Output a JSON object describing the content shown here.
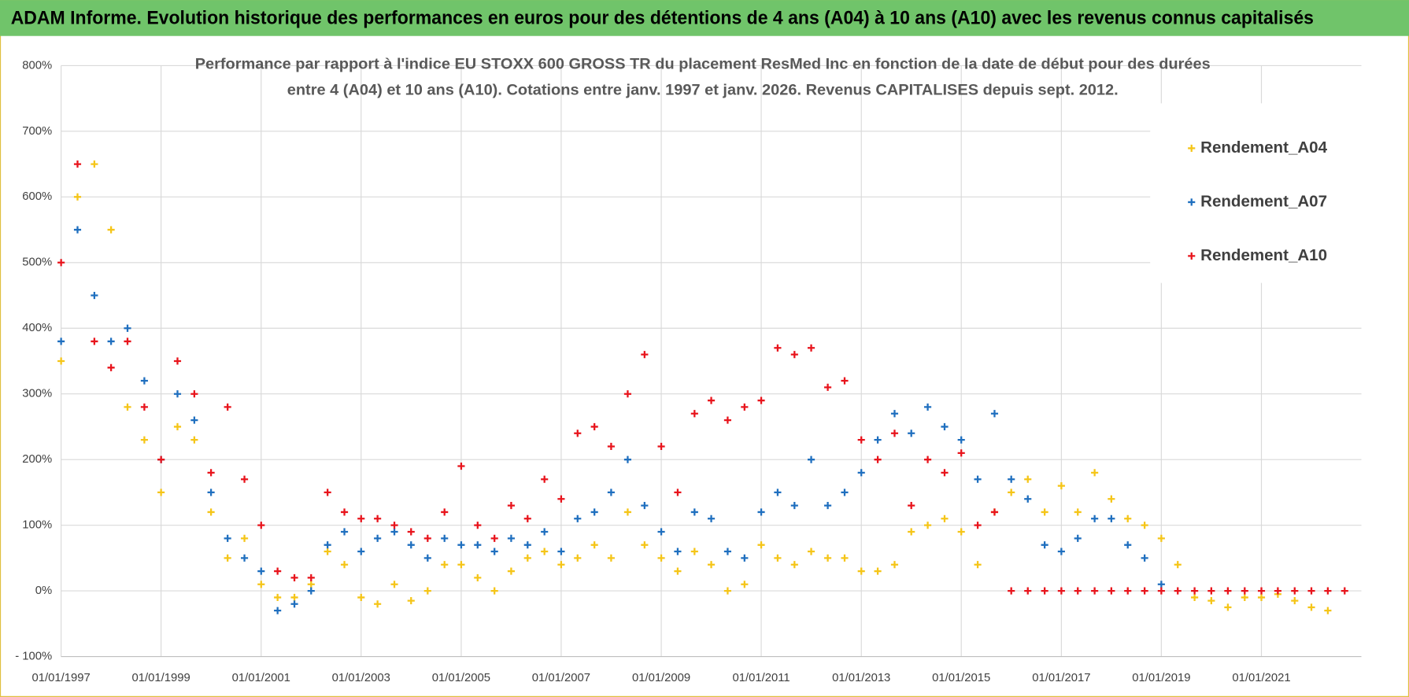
{
  "header": {
    "title": "ADAM Informe. Evolution historique des performances en euros pour des détentions de 4 ans (A04) à 10 ans (A10) avec les revenus connus capitalisés"
  },
  "chart_data": {
    "type": "scatter",
    "title": [
      "Performance par rapport à l'indice EU STOXX 600 GROSS TR  du placement ResMed Inc en fonction de la date de début pour des durées",
      "entre 4 (A04) et 10 ans (A10).  Cotations entre janv. 1997 et janv. 2026.  Revenus CAPITALISES  depuis sept. 2012."
    ],
    "x": [
      "1997-01-01",
      "1997-05-01",
      "1997-09-01",
      "1998-01-01",
      "1998-05-01",
      "1998-09-01",
      "1999-01-01",
      "1999-05-01",
      "1999-09-01",
      "2000-01-01",
      "2000-05-01",
      "2000-09-01",
      "2001-01-01",
      "2001-05-01",
      "2001-09-01",
      "2002-01-01",
      "2002-05-01",
      "2002-09-01",
      "2003-01-01",
      "2003-05-01",
      "2003-09-01",
      "2004-01-01",
      "2004-05-01",
      "2004-09-01",
      "2005-01-01",
      "2005-05-01",
      "2005-09-01",
      "2006-01-01",
      "2006-05-01",
      "2006-09-01",
      "2007-01-01",
      "2007-05-01",
      "2007-09-01",
      "2008-01-01",
      "2008-05-01",
      "2008-09-01",
      "2009-01-01",
      "2009-05-01",
      "2009-09-01",
      "2010-01-01",
      "2010-05-01",
      "2010-09-01",
      "2011-01-01",
      "2011-05-01",
      "2011-09-01",
      "2012-01-01",
      "2012-05-01",
      "2012-09-01",
      "2013-01-01",
      "2013-05-01",
      "2013-09-01",
      "2014-01-01",
      "2014-05-01",
      "2014-09-01",
      "2015-01-01",
      "2015-05-01",
      "2015-09-01",
      "2016-01-01",
      "2016-05-01",
      "2016-09-01",
      "2017-01-01",
      "2017-05-01",
      "2017-09-01",
      "2018-01-01",
      "2018-05-01",
      "2018-09-01",
      "2019-01-01",
      "2019-05-01",
      "2019-09-01",
      "2020-01-01",
      "2020-05-01",
      "2020-09-01",
      "2021-01-01",
      "2021-05-01",
      "2021-09-01",
      "2022-01-01",
      "2022-05-01",
      "2022-09-01"
    ],
    "series": [
      {
        "name": "Rendement_A04",
        "color": "#f5c518",
        "values": [
          350,
          600,
          650,
          550,
          280,
          230,
          150,
          250,
          230,
          120,
          50,
          80,
          10,
          -10,
          -10,
          10,
          60,
          40,
          -10,
          -20,
          10,
          -15,
          0,
          40,
          40,
          20,
          0,
          30,
          50,
          60,
          40,
          50,
          70,
          50,
          120,
          70,
          50,
          30,
          60,
          40,
          0,
          10,
          70,
          50,
          40,
          60,
          50,
          50,
          30,
          30,
          40,
          90,
          100,
          110,
          90,
          40,
          120,
          150,
          170,
          120,
          160,
          120,
          180,
          140,
          110,
          100,
          80,
          40,
          -10,
          -15,
          -25,
          -10,
          -10,
          -5,
          -15,
          -25,
          -30,
          null
        ]
      },
      {
        "name": "Rendement_A07",
        "color": "#1f6fbf",
        "values": [
          380,
          550,
          450,
          380,
          400,
          320,
          200,
          300,
          260,
          150,
          80,
          50,
          30,
          -30,
          -20,
          0,
          70,
          90,
          60,
          80,
          90,
          70,
          50,
          80,
          70,
          70,
          60,
          80,
          70,
          90,
          60,
          110,
          120,
          150,
          200,
          130,
          90,
          60,
          120,
          110,
          60,
          50,
          120,
          150,
          130,
          200,
          130,
          150,
          180,
          230,
          270,
          240,
          280,
          250,
          230,
          170,
          270,
          170,
          140,
          70,
          60,
          80,
          110,
          110,
          70,
          50,
          10,
          null,
          null,
          null,
          null,
          null,
          null,
          null,
          null,
          null,
          null,
          null
        ]
      },
      {
        "name": "Rendement_A10",
        "color": "#e8141c",
        "values": [
          500,
          650,
          380,
          340,
          380,
          280,
          200,
          350,
          300,
          180,
          280,
          170,
          100,
          30,
          20,
          20,
          150,
          120,
          110,
          110,
          100,
          90,
          80,
          120,
          190,
          100,
          80,
          130,
          110,
          170,
          140,
          240,
          250,
          220,
          300,
          360,
          220,
          150,
          270,
          290,
          260,
          280,
          290,
          370,
          360,
          370,
          310,
          320,
          230,
          200,
          240,
          130,
          200,
          180,
          210,
          100,
          120,
          0,
          0,
          0,
          0,
          0,
          0,
          0,
          0,
          0,
          0,
          0,
          0,
          0,
          0,
          0,
          0,
          0,
          0,
          0,
          0,
          0
        ]
      }
    ],
    "xlim": [
      "1997-01-01",
      "2023-01-01"
    ],
    "xticks": [
      {
        "value": "1997-01-01",
        "label": "01/01/1997"
      },
      {
        "value": "1999-01-01",
        "label": "01/01/1999"
      },
      {
        "value": "2001-01-01",
        "label": "01/01/2001"
      },
      {
        "value": "2003-01-01",
        "label": "01/01/2003"
      },
      {
        "value": "2005-01-01",
        "label": "01/01/2005"
      },
      {
        "value": "2007-01-01",
        "label": "01/01/2007"
      },
      {
        "value": "2009-01-01",
        "label": "01/01/2009"
      },
      {
        "value": "2011-01-01",
        "label": "01/01/2011"
      },
      {
        "value": "2013-01-01",
        "label": "01/01/2013"
      },
      {
        "value": "2015-01-01",
        "label": "01/01/2015"
      },
      {
        "value": "2017-01-01",
        "label": "01/01/2017"
      },
      {
        "value": "2019-01-01",
        "label": "01/01/2019"
      },
      {
        "value": "2021-01-01",
        "label": "01/01/2021"
      }
    ],
    "ylim": [
      -100,
      800
    ],
    "yticks": [
      {
        "value": -100,
        "label": "- 100%"
      },
      {
        "value": 0,
        "label": "0%"
      },
      {
        "value": 100,
        "label": "100%"
      },
      {
        "value": 200,
        "label": "200%"
      },
      {
        "value": 300,
        "label": "300%"
      },
      {
        "value": 400,
        "label": "400%"
      },
      {
        "value": 500,
        "label": "500%"
      },
      {
        "value": 600,
        "label": "600%"
      },
      {
        "value": 700,
        "label": "700%"
      },
      {
        "value": 800,
        "label": "800%"
      }
    ],
    "grid": true,
    "legend": "upper right"
  }
}
